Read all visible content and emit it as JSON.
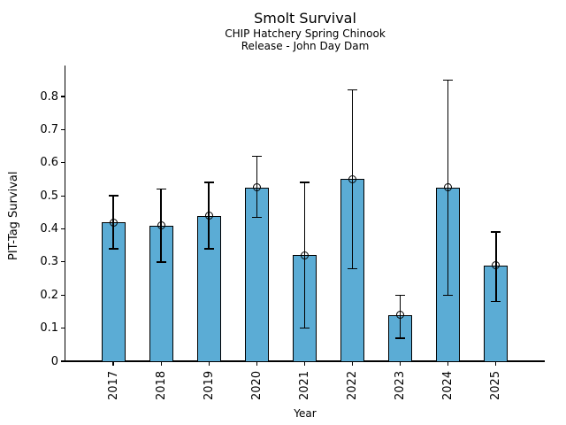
{
  "chart_data": {
    "type": "bar",
    "title": "Smolt Survival",
    "subtitle_lines": [
      "CHIP Hatchery Spring Chinook",
      "Release - John Day Dam"
    ],
    "xlabel": "Year",
    "ylabel": "PIT-Tag Survival",
    "categories": [
      "2017",
      "2018",
      "2019",
      "2020",
      "2021",
      "2022",
      "2023",
      "2024",
      "2025"
    ],
    "series": [
      {
        "name": "PIT-Tag Survival",
        "values": [
          0.42,
          0.41,
          0.44,
          0.525,
          0.32,
          0.55,
          0.14,
          0.525,
          0.29
        ],
        "error_low": [
          0.34,
          0.3,
          0.34,
          0.435,
          0.1,
          0.28,
          0.07,
          0.2,
          0.18
        ],
        "error_high": [
          0.5,
          0.52,
          0.54,
          0.62,
          0.54,
          0.82,
          0.2,
          0.85,
          0.39
        ]
      }
    ],
    "ylim": [
      0,
      0.89
    ],
    "y_tick_values": [
      0,
      0.1,
      0.2,
      0.3,
      0.4,
      0.5,
      0.6,
      0.7,
      0.8
    ],
    "y_tick_labels": [
      "0",
      "0.1",
      "0.2",
      "0.3",
      "0.4",
      "0.5",
      "0.6",
      "0.7",
      "0.8"
    ],
    "x_tick_rotation": 90,
    "grid": false,
    "legend": "none",
    "bar_color": "#5BACD5",
    "bar_edge_color": "#000000",
    "error_color": "#000000",
    "marker": "open-circle"
  }
}
